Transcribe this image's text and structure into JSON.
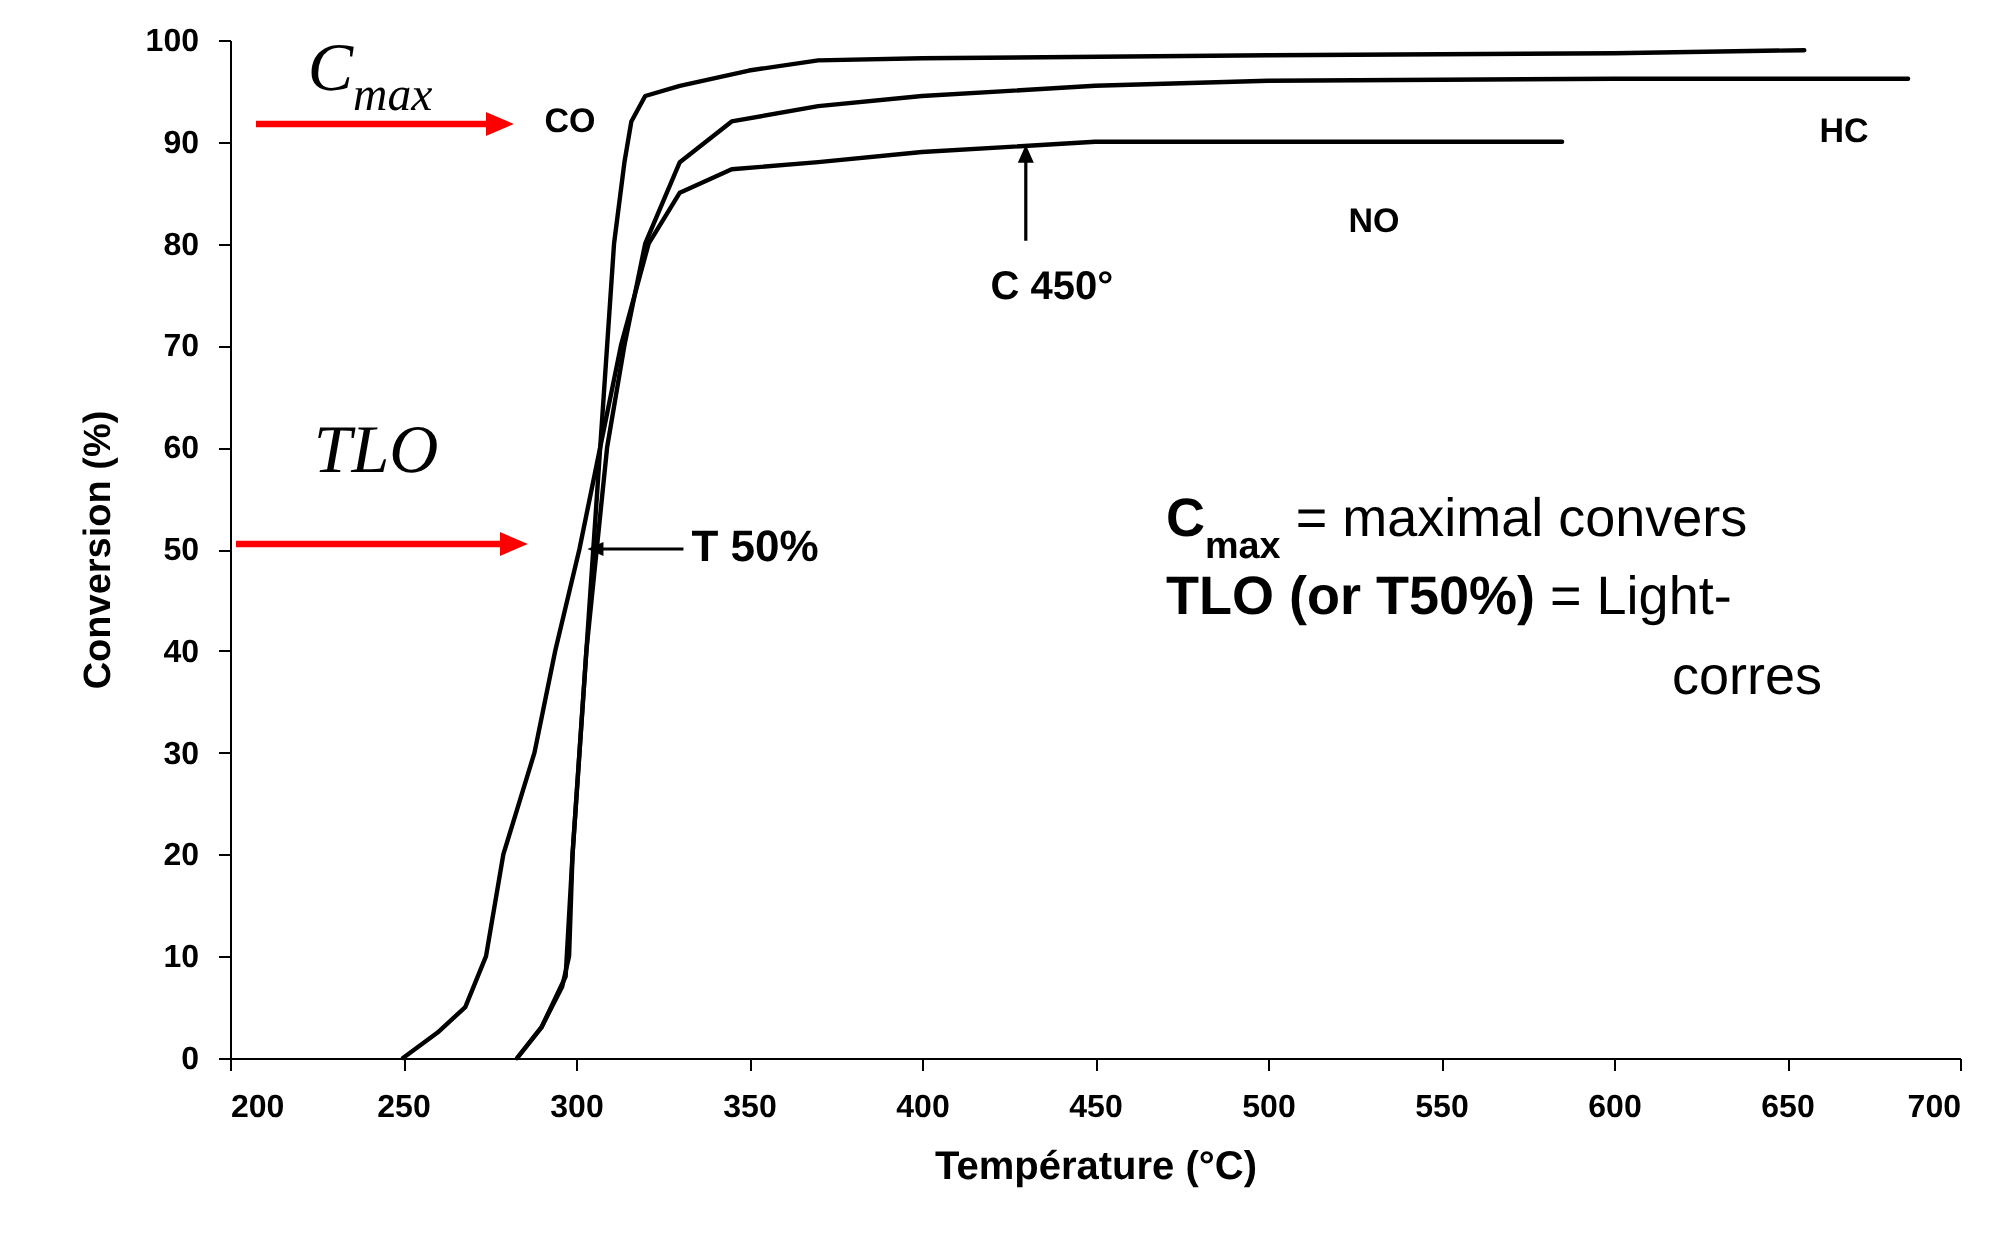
{
  "chart_data": {
    "type": "line",
    "xlabel": "Température (°C)",
    "ylabel": "Conversion (%)",
    "xlim": [
      200,
      700
    ],
    "ylim": [
      0,
      100
    ],
    "xticks": [
      200,
      250,
      300,
      350,
      400,
      450,
      500,
      550,
      600,
      650,
      700
    ],
    "yticks": [
      0,
      10,
      20,
      30,
      40,
      50,
      60,
      70,
      80,
      90,
      100
    ],
    "series": [
      {
        "color": "#000000",
        "x": [
          283,
          290,
          296,
          298,
          299,
          301,
          303,
          305,
          308,
          311,
          314,
          316,
          320,
          330,
          350,
          370,
          400,
          500,
          600,
          655
        ],
        "values": [
          0,
          3,
          7,
          10,
          20,
          30,
          40,
          50,
          65,
          80,
          88,
          92,
          94.5,
          95.5,
          97,
          98,
          98.2,
          98.5,
          98.7,
          99
        ]
      },
      {
        "color": "#000000",
        "x": [
          283,
          290,
          297,
          299,
          301,
          303,
          306,
          309,
          314,
          320,
          330,
          345,
          370,
          400,
          450,
          500,
          600,
          685
        ],
        "values": [
          0,
          3,
          8,
          20,
          30,
          40,
          50,
          60,
          70,
          80,
          88,
          92,
          93.5,
          94.5,
          95.5,
          96,
          96.2,
          96.2
        ]
      },
      {
        "color": "#000000",
        "x": [
          250,
          260,
          268,
          274,
          279,
          288,
          294,
          301,
          307,
          313,
          321,
          330,
          345,
          370,
          400,
          450,
          500,
          585
        ],
        "values": [
          0,
          2.5,
          5,
          10,
          20,
          30,
          40,
          50,
          60,
          70,
          80,
          85,
          87.3,
          88,
          89,
          90,
          90,
          90
        ]
      }
    ],
    "annotations": [
      "C$_{max}$",
      "CO",
      "TLO",
      {
        "text": "T 50%",
        "x": 301,
        "y": 50
      },
      {
        "text": "C 450°",
        "x": 430,
        "y": 89.7
      },
      "NO",
      "HC",
      "C$_{max}$ = maximal convers",
      "TLO (or T50%) = Light-",
      "corres"
    ]
  }
}
